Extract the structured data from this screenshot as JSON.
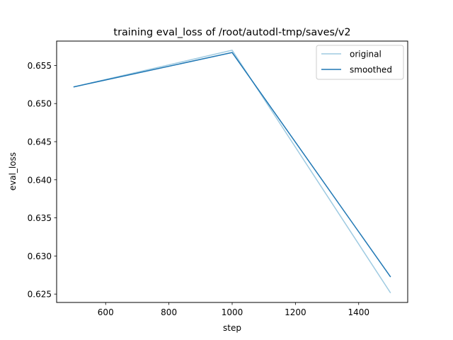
{
  "chart_data": {
    "type": "line",
    "title": "training eval_loss of /root/autodl-tmp/saves/v2",
    "xlabel": "step",
    "ylabel": "eval_loss",
    "xlim": [
      445,
      1555
    ],
    "ylim": [
      0.6239,
      0.6582
    ],
    "xticks": [
      600,
      800,
      1000,
      1200,
      1400
    ],
    "yticks": [
      0.625,
      0.63,
      0.635,
      0.64,
      0.645,
      0.65,
      0.655
    ],
    "grid": false,
    "legend_position": "top-right",
    "series": [
      {
        "name": "original",
        "color": "#9ecae1",
        "x": [
          500,
          1000,
          1500
        ],
        "y": [
          0.6522,
          0.657,
          0.6252
        ]
      },
      {
        "name": "smoothed",
        "color": "#1f77b4",
        "x": [
          500,
          1000,
          1500
        ],
        "y": [
          0.6522,
          0.6567,
          0.6273
        ]
      }
    ]
  }
}
